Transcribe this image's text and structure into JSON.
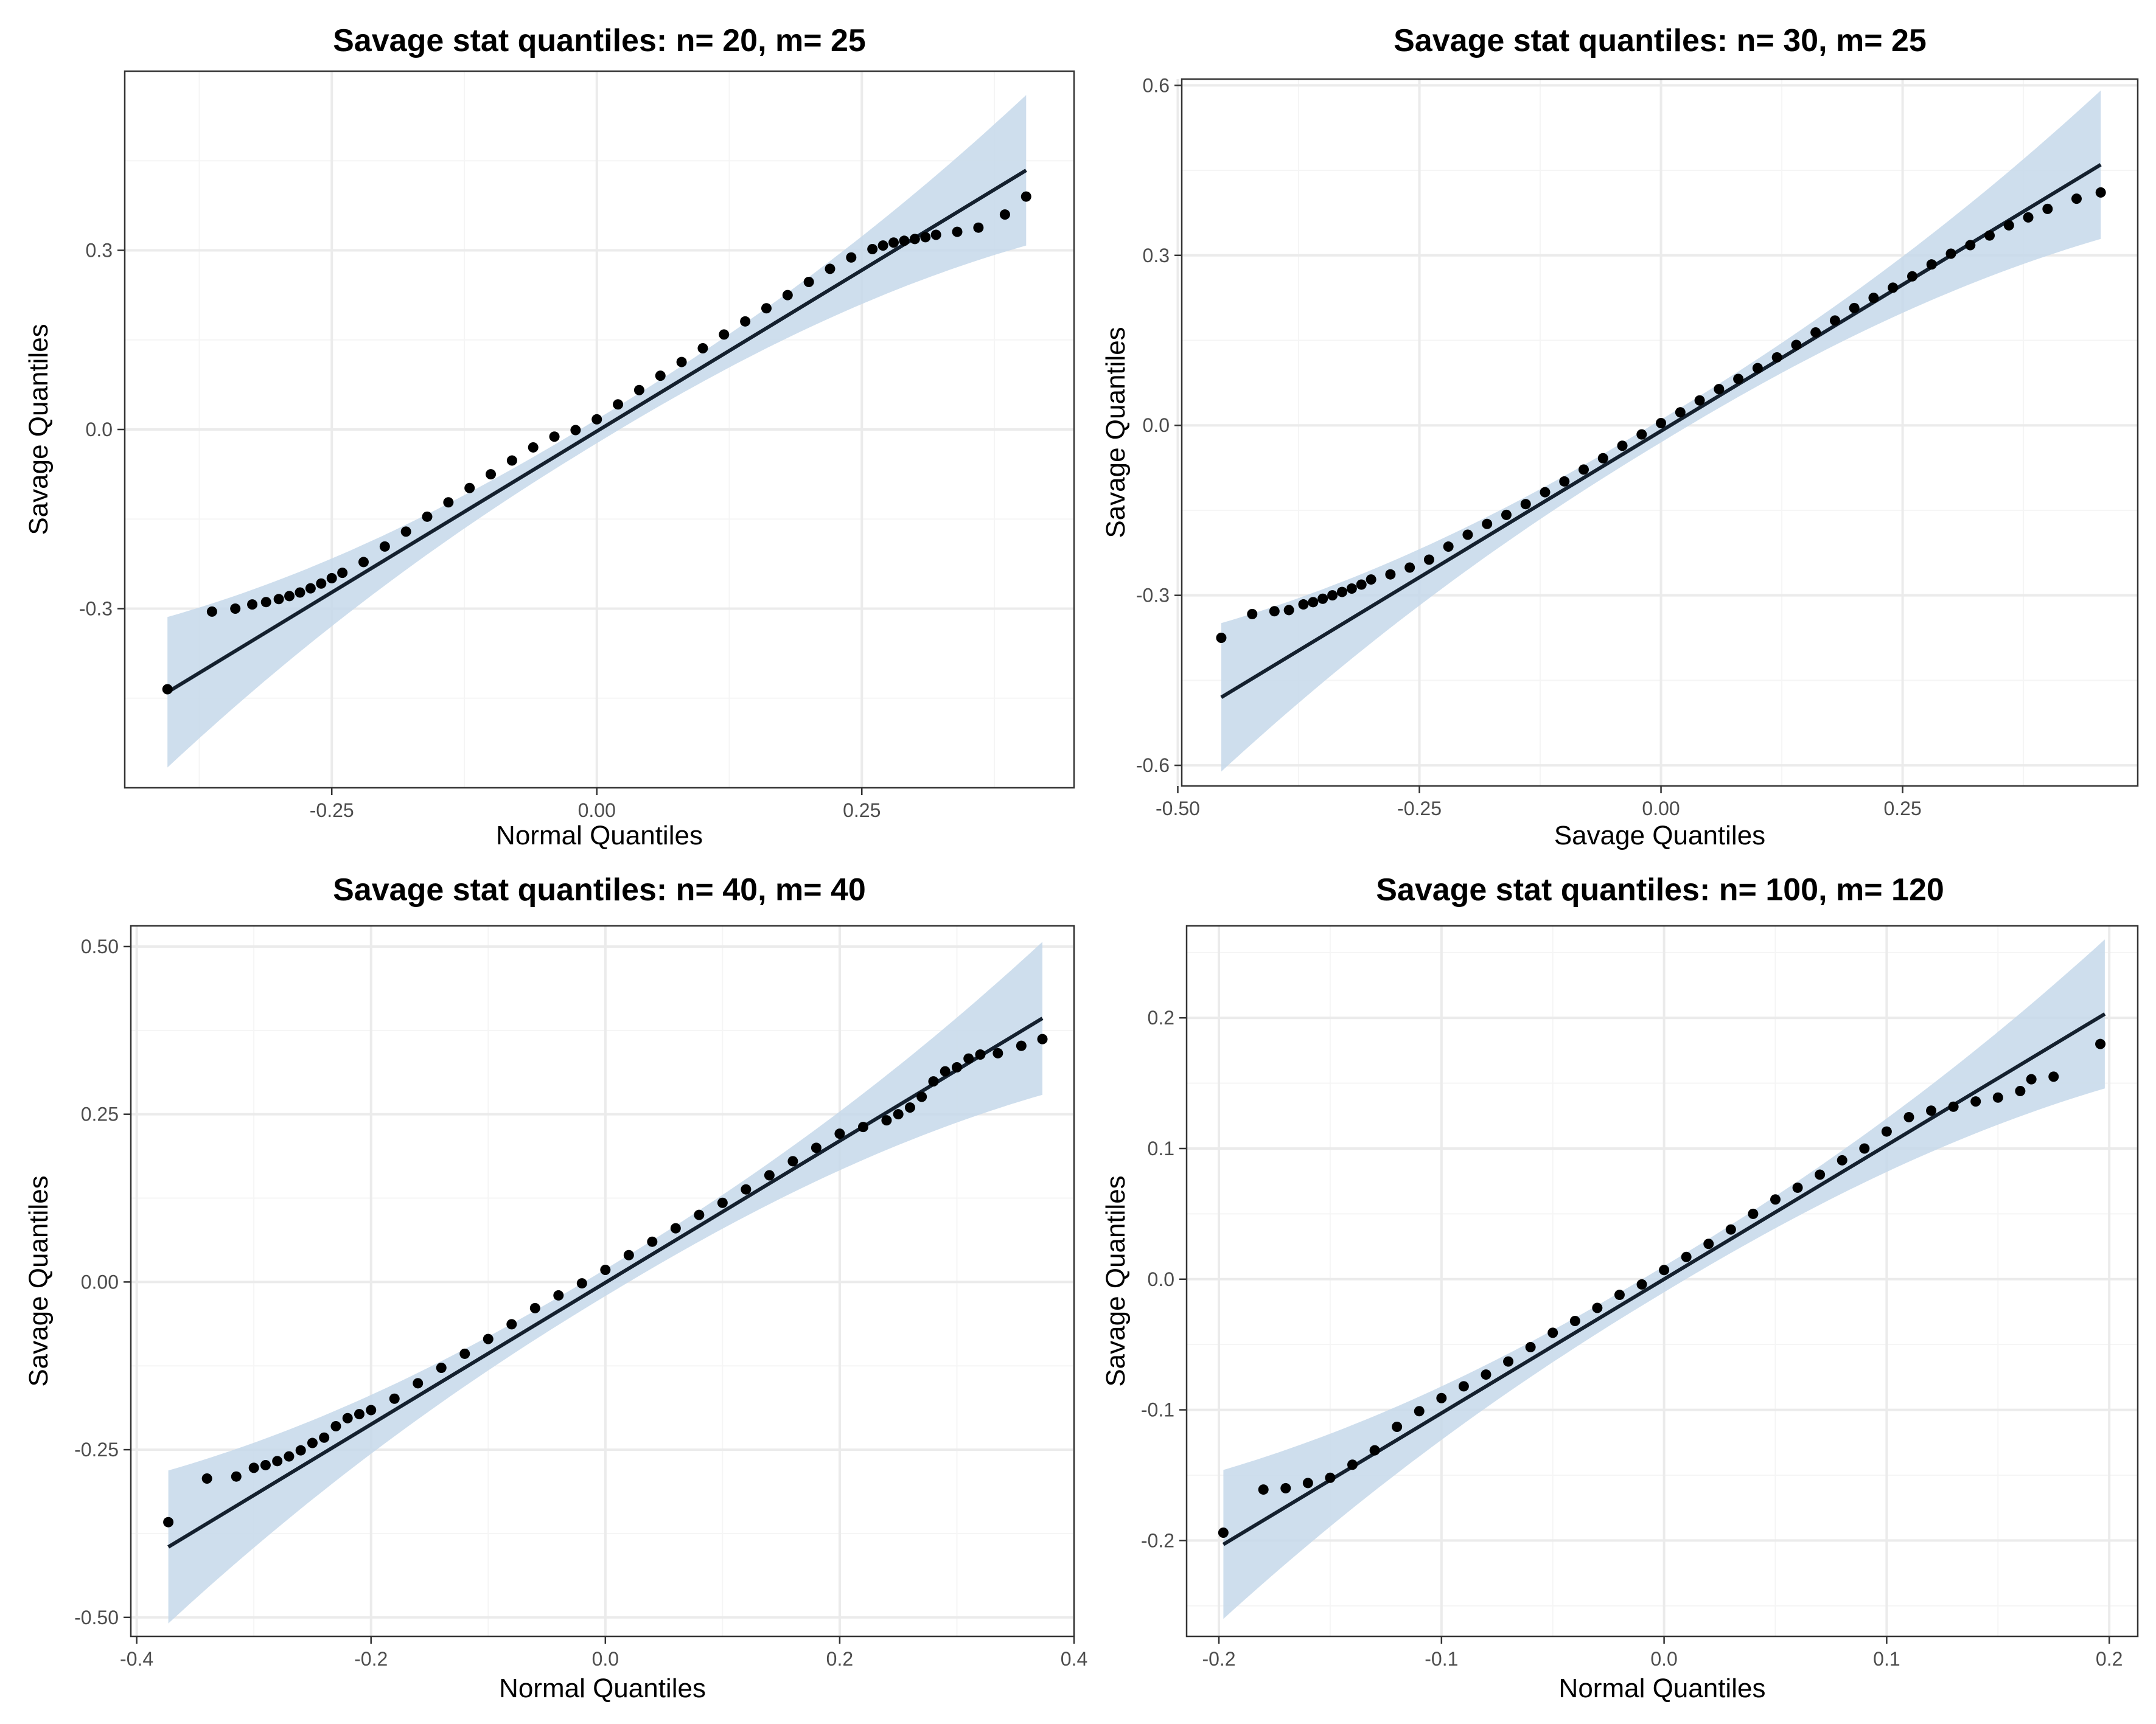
{
  "colors": {
    "band": "#c6d8ea",
    "line": "#14202e",
    "point": "#000000",
    "grid_major": "#ebebeb",
    "grid_minor": "#f5f5f5",
    "frame": "#333333"
  },
  "chart_data": [
    {
      "type": "scatter",
      "title": "Savage stat quantiles: n= 20, m= 25",
      "xlabel": "Normal Quantiles",
      "ylabel": "Savage Quantiles",
      "xlim": [
        -0.4453,
        0.4502
      ],
      "ylim": [
        -0.6,
        0.6
      ],
      "xticks": [
        -0.25,
        0,
        0.25
      ],
      "xtick_labels": [
        "-0.25",
        "0.00",
        "0.25"
      ],
      "yticks": [
        -0.3,
        0,
        0.3
      ],
      "ytick_labels": [
        "-0.3",
        "0.0",
        "0.3"
      ],
      "grid": true,
      "reference_line": {
        "x": [
          -0.405,
          0.405
        ],
        "y": [
          -0.44,
          0.434
        ]
      },
      "band_halfwidth": {
        "center": 0.105,
        "edge": 0.106
      },
      "band_min_width": 0.02,
      "points": {
        "x": [
          -0.405,
          -0.363,
          -0.341,
          -0.325,
          -0.312,
          -0.3,
          -0.29,
          -0.28,
          -0.27,
          -0.26,
          -0.25,
          -0.24,
          -0.22,
          -0.2,
          -0.18,
          -0.16,
          -0.14,
          -0.12,
          -0.1,
          -0.08,
          -0.06,
          -0.04,
          -0.02,
          0,
          0.02,
          0.04,
          0.06,
          0.08,
          0.1,
          0.12,
          0.14,
          0.16,
          0.18,
          0.2,
          0.22,
          0.24,
          0.26,
          0.27,
          0.28,
          0.29,
          0.3,
          0.31,
          0.32,
          0.34,
          0.36,
          0.385,
          0.405
        ],
        "y": [
          -0.435,
          -0.305,
          -0.3,
          -0.293,
          -0.289,
          -0.284,
          -0.279,
          -0.273,
          -0.266,
          -0.258,
          -0.249,
          -0.24,
          -0.222,
          -0.196,
          -0.171,
          -0.146,
          -0.122,
          -0.098,
          -0.075,
          -0.052,
          -0.03,
          -0.012,
          -0.001,
          0.017,
          0.042,
          0.066,
          0.09,
          0.113,
          0.136,
          0.159,
          0.181,
          0.203,
          0.225,
          0.247,
          0.269,
          0.288,
          0.302,
          0.308,
          0.313,
          0.316,
          0.319,
          0.322,
          0.326,
          0.331,
          0.338,
          0.36,
          0.39
        ]
      }
    },
    {
      "type": "scatter",
      "title": "Savage stat quantiles: n= 30, m= 25",
      "xlabel": "Savage Quantiles",
      "ylabel": "Savage Quantiles",
      "xlim": [
        -0.4959,
        0.4933
      ],
      "ylim": [
        -0.6364,
        0.6111
      ],
      "xticks": [
        -0.5,
        -0.25,
        0,
        0.25
      ],
      "xtick_labels": [
        "-0.50",
        "-0.25",
        "0.00",
        "0.25"
      ],
      "yticks": [
        -0.6,
        -0.3,
        0,
        0.3,
        0.6
      ],
      "ytick_labels": [
        "-0.6",
        "-0.3",
        "0.0",
        "0.3",
        "0.6"
      ],
      "grid": true,
      "reference_line": {
        "x": [
          -0.455,
          0.455
        ],
        "y": [
          -0.48,
          0.46
        ]
      },
      "band_halfwidth": {
        "center": 0.112,
        "edge": 0.111
      },
      "band_min_width": 0.02,
      "points": {
        "x": [
          -0.455,
          -0.423,
          -0.4,
          -0.385,
          -0.37,
          -0.36,
          -0.35,
          -0.34,
          -0.33,
          -0.32,
          -0.31,
          -0.3,
          -0.28,
          -0.26,
          -0.24,
          -0.22,
          -0.2,
          -0.18,
          -0.16,
          -0.14,
          -0.12,
          -0.1,
          -0.08,
          -0.06,
          -0.04,
          -0.02,
          0,
          0.02,
          0.04,
          0.06,
          0.08,
          0.1,
          0.12,
          0.14,
          0.16,
          0.18,
          0.2,
          0.22,
          0.24,
          0.26,
          0.28,
          0.3,
          0.32,
          0.34,
          0.36,
          0.38,
          0.4,
          0.43,
          0.455
        ],
        "y": [
          -0.375,
          -0.333,
          -0.328,
          -0.326,
          -0.316,
          -0.312,
          -0.306,
          -0.3,
          -0.294,
          -0.288,
          -0.281,
          -0.272,
          -0.263,
          -0.251,
          -0.237,
          -0.214,
          -0.193,
          -0.174,
          -0.158,
          -0.139,
          -0.118,
          -0.099,
          -0.078,
          -0.058,
          -0.036,
          -0.016,
          0.004,
          0.023,
          0.044,
          0.064,
          0.082,
          0.101,
          0.12,
          0.142,
          0.164,
          0.185,
          0.207,
          0.225,
          0.243,
          0.263,
          0.284,
          0.303,
          0.318,
          0.335,
          0.353,
          0.367,
          0.382,
          0.4,
          0.411
        ]
      }
    },
    {
      "type": "scatter",
      "title": "Savage stat quantiles: n= 40, m= 40",
      "xlabel": "Normal Quantiles",
      "ylabel": "Savage Quantiles",
      "xlim": [
        -0.405,
        0.4
      ],
      "ylim": [
        -0.5283,
        0.5308
      ],
      "xticks": [
        -0.4,
        -0.2,
        0,
        0.2,
        0.4
      ],
      "xtick_labels": [
        "-0.4",
        "-0.2",
        "0.0",
        "0.2",
        "0.4"
      ],
      "yticks": [
        -0.5,
        -0.25,
        0,
        0.25,
        0.5
      ],
      "ytick_labels": [
        "-0.50",
        "-0.25",
        "0.00",
        "0.25",
        "0.50"
      ],
      "grid": true,
      "reference_line": {
        "x": [
          -0.373,
          0.373
        ],
        "y": [
          -0.395,
          0.393
        ]
      },
      "band_halfwidth": {
        "center": 0.095,
        "edge": 0.094
      },
      "band_min_width": 0.02,
      "points": {
        "x": [
          -0.373,
          -0.34,
          -0.315,
          -0.3,
          -0.29,
          -0.28,
          -0.27,
          -0.26,
          -0.25,
          -0.24,
          -0.23,
          -0.22,
          -0.21,
          -0.2,
          -0.18,
          -0.16,
          -0.14,
          -0.12,
          -0.1,
          -0.08,
          -0.06,
          -0.04,
          -0.02,
          0,
          0.02,
          0.04,
          0.06,
          0.08,
          0.1,
          0.12,
          0.14,
          0.16,
          0.18,
          0.2,
          0.22,
          0.24,
          0.25,
          0.26,
          0.27,
          0.28,
          0.29,
          0.3,
          0.31,
          0.32,
          0.335,
          0.355,
          0.373
        ],
        "y": [
          -0.358,
          -0.293,
          -0.29,
          -0.277,
          -0.273,
          -0.267,
          -0.26,
          -0.251,
          -0.24,
          -0.232,
          -0.215,
          -0.203,
          -0.197,
          -0.191,
          -0.174,
          -0.151,
          -0.128,
          -0.107,
          -0.085,
          -0.063,
          -0.039,
          -0.02,
          -0.002,
          0.018,
          0.04,
          0.06,
          0.08,
          0.1,
          0.118,
          0.138,
          0.159,
          0.18,
          0.2,
          0.221,
          0.231,
          0.241,
          0.25,
          0.26,
          0.276,
          0.299,
          0.314,
          0.32,
          0.333,
          0.339,
          0.341,
          0.352,
          0.362
        ]
      }
    },
    {
      "type": "scatter",
      "title": "Savage stat quantiles: n= 100, m= 120",
      "xlabel": "Normal Quantiles",
      "ylabel": "Savage Quantiles",
      "xlim": [
        -0.2145,
        0.2128
      ],
      "ylim": [
        -0.2734,
        0.2704
      ],
      "xticks": [
        -0.2,
        -0.1,
        0,
        0.1,
        0.2
      ],
      "xtick_labels": [
        "-0.2",
        "-0.1",
        "0.0",
        "0.1",
        "0.2"
      ],
      "yticks": [
        -0.2,
        -0.1,
        0,
        0.1,
        0.2
      ],
      "ytick_labels": [
        "-0.2",
        "-0.1",
        "0.0",
        "0.1",
        "0.2"
      ],
      "grid": true,
      "reference_line": {
        "x": [
          -0.198,
          0.198
        ],
        "y": [
          -0.203,
          0.203
        ]
      },
      "band_halfwidth": {
        "center": 0.048,
        "edge": 0.047
      },
      "band_min_width": 0.01,
      "points": {
        "x": [
          -0.198,
          -0.18,
          -0.17,
          -0.16,
          -0.15,
          -0.14,
          -0.13,
          -0.12,
          -0.11,
          -0.1,
          -0.09,
          -0.08,
          -0.07,
          -0.06,
          -0.05,
          -0.04,
          -0.03,
          -0.02,
          -0.01,
          0,
          0.01,
          0.02,
          0.03,
          0.04,
          0.05,
          0.06,
          0.07,
          0.08,
          0.09,
          0.1,
          0.11,
          0.12,
          0.13,
          0.14,
          0.15,
          0.16,
          0.165,
          0.175,
          0.196
        ],
        "y": [
          -0.194,
          -0.161,
          -0.16,
          -0.156,
          -0.152,
          -0.142,
          -0.131,
          -0.113,
          -0.101,
          -0.091,
          -0.082,
          -0.073,
          -0.063,
          -0.052,
          -0.041,
          -0.032,
          -0.022,
          -0.012,
          -0.004,
          0.007,
          0.017,
          0.027,
          0.038,
          0.05,
          0.061,
          0.07,
          0.08,
          0.091,
          0.1,
          0.113,
          0.124,
          0.129,
          0.132,
          0.136,
          0.139,
          0.144,
          0.153,
          0.155,
          0.18
        ]
      }
    }
  ]
}
